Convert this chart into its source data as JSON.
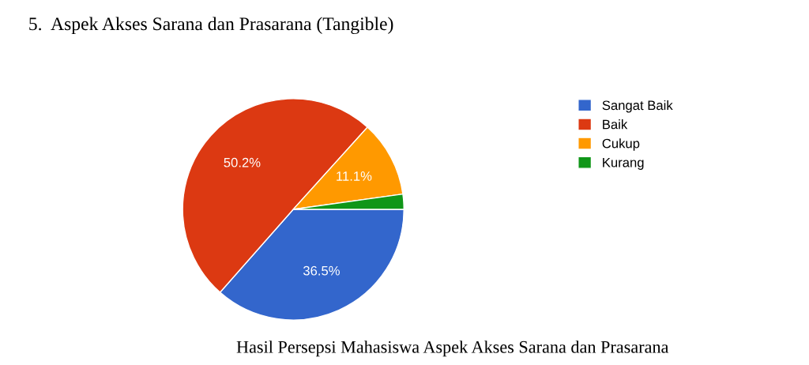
{
  "chart_data": {
    "type": "pie",
    "title": "5.  Aspek Akses Sarana dan Prasarana (Tangible)",
    "categories": [
      "Sangat Baik",
      "Baik",
      "Cukup",
      "Kurang"
    ],
    "values": [
      36.5,
      50.2,
      11.1,
      2.2
    ],
    "colors": [
      "#3366cc",
      "#dc3912",
      "#ff9900",
      "#109618"
    ],
    "value_labels": [
      "36.5%",
      "50.2%",
      "11.1%",
      null
    ],
    "legend": "right",
    "annotations": [
      "Hasil Persepsi Mahasiswa Aspek Akses Sarana dan Prasarana"
    ]
  }
}
